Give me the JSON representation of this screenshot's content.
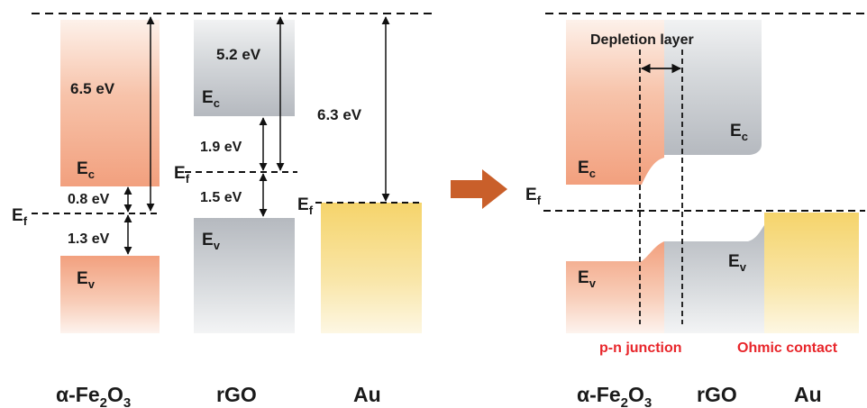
{
  "left_panel": {
    "materials": {
      "fe2o3": {
        "base": "α-Fe",
        "sub1": "2",
        "mid": "O",
        "sub2": "3"
      },
      "rgo": "rGO",
      "au": "Au"
    },
    "fe2o3": {
      "ec_label": "E",
      "ec_sub": "c",
      "ev_label": "E",
      "ev_sub": "v",
      "gap_top": "6.5 eV",
      "gap_ec_ef": "0.8 eV",
      "gap_ef_ev": "1.3 eV"
    },
    "ef_left": {
      "label": "E",
      "sub": "f"
    },
    "rgo": {
      "ec_label": "E",
      "ec_sub": "c",
      "ev_label": "E",
      "ev_sub": "v",
      "gap_top": "5.2 eV",
      "gap_ec_ef": "1.9 eV",
      "gap_ef_ev": "1.5 eV",
      "ef_label": "E",
      "ef_sub": "f"
    },
    "au": {
      "work_function": "6.3 eV",
      "ef_label": "E",
      "ef_sub": "f"
    }
  },
  "right_panel": {
    "depletion_layer": "Depletion layer",
    "ef_label": "E",
    "ef_sub": "f",
    "fe2o3_ec": {
      "label": "E",
      "sub": "c"
    },
    "fe2o3_ev": {
      "label": "E",
      "sub": "v"
    },
    "rgo_ec": {
      "label": "E",
      "sub": "c"
    },
    "rgo_ev": {
      "label": "E",
      "sub": "v"
    },
    "pn_junction": "p-n junction",
    "ohmic_contact": "Ohmic contact",
    "materials": {
      "fe2o3": {
        "base": "α-Fe",
        "sub1": "2",
        "mid": "O",
        "sub2": "3"
      },
      "rgo": "rGO",
      "au": "Au"
    }
  },
  "colors": {
    "fe2o3": "#f2a07e",
    "rgo": "#b8bcc2",
    "au": "#f5d46b",
    "accent_red": "#e8262b",
    "arrow": "#c95f2a"
  }
}
